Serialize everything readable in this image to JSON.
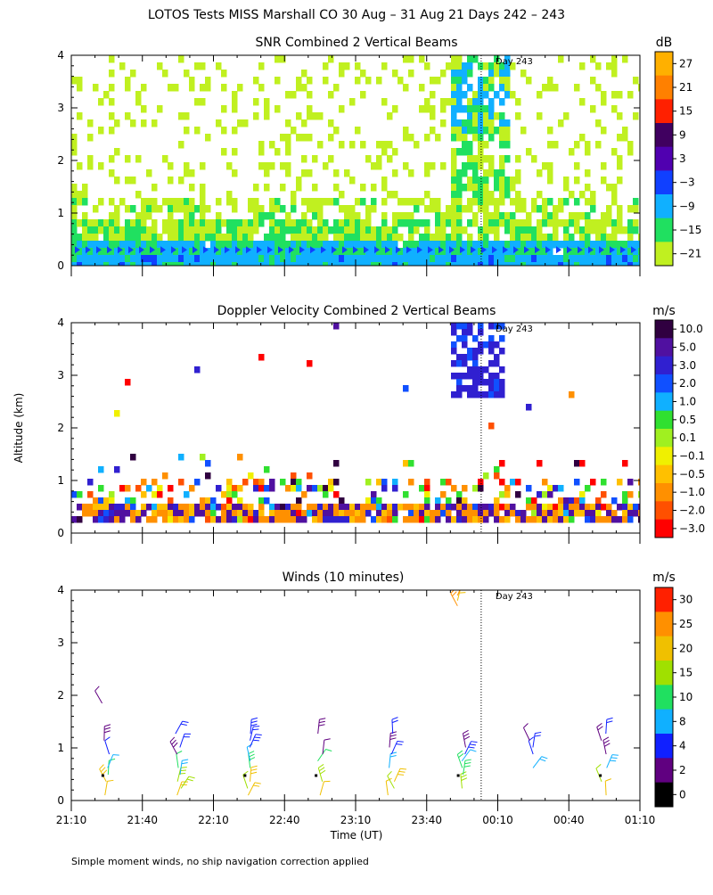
{
  "page": {
    "main_title": "LOTOS Tests MISS Marshall CO  30 Aug – 31 Aug 21 Days 242 – 243",
    "y_axis_label": "Altitude (km)",
    "x_axis_label": "Time (UT)",
    "footnote": "Simple moment winds, no ship navigation correction applied",
    "day_marker_label": "Day 243",
    "x_tick_labels": [
      "21:10",
      "21:40",
      "22:10",
      "22:40",
      "23:10",
      "23:40",
      "00:10",
      "00:40",
      "01:10"
    ],
    "y_tick_labels": [
      "0",
      "1",
      "2",
      "3",
      "4"
    ]
  },
  "chart_data": [
    {
      "type": "heatmap",
      "title": "SNR Combined 2 Vertical Beams",
      "units": "dB",
      "xlim_minutes": [
        0,
        240
      ],
      "ylim": [
        0,
        4
      ],
      "day_boundary_minutes": 173,
      "colorbar": {
        "labels": [
          "27",
          "21",
          "15",
          "9",
          "3",
          "−3",
          "−9",
          "−15",
          "−21"
        ],
        "colors": [
          "#ffb000",
          "#ff8000",
          "#ff2000",
          "#400060",
          "#5000b0",
          "#1040ff",
          "#10b0ff",
          "#20e060",
          "#c0f020"
        ]
      }
    },
    {
      "type": "heatmap",
      "title": "Doppler Velocity Combined 2 Vertical Beams",
      "units": "m/s",
      "xlim_minutes": [
        0,
        240
      ],
      "ylim": [
        0,
        4
      ],
      "day_boundary_minutes": 173,
      "colorbar": {
        "labels": [
          "10.0",
          "5.0",
          "3.0",
          "2.0",
          "1.0",
          "0.5",
          "0.1",
          "−0.1",
          "−0.5",
          "−1.0",
          "−2.0",
          "−3.0"
        ],
        "colors": [
          "#300040",
          "#5010a0",
          "#3020d0",
          "#1050ff",
          "#10b0ff",
          "#30e030",
          "#a0f020",
          "#f0f000",
          "#ffc000",
          "#ff9000",
          "#ff5000",
          "#ff0000"
        ]
      }
    },
    {
      "type": "scatter",
      "title": "Winds (10 minutes)",
      "units": "m/s",
      "xlim_minutes": [
        0,
        240
      ],
      "ylim": [
        0,
        4
      ],
      "day_boundary_minutes": 173,
      "colorbar": {
        "labels": [
          "30",
          "25",
          "20",
          "15",
          "10",
          "8",
          "4",
          "2",
          "0"
        ],
        "colors": [
          "#ff2000",
          "#ff9000",
          "#f0c000",
          "#a0e000",
          "#20e060",
          "#10b0ff",
          "#1020ff",
          "#600080",
          "#000000"
        ]
      },
      "wind_profile_times_minutes": [
        15,
        45,
        75,
        105,
        135,
        165,
        195,
        225
      ]
    }
  ]
}
